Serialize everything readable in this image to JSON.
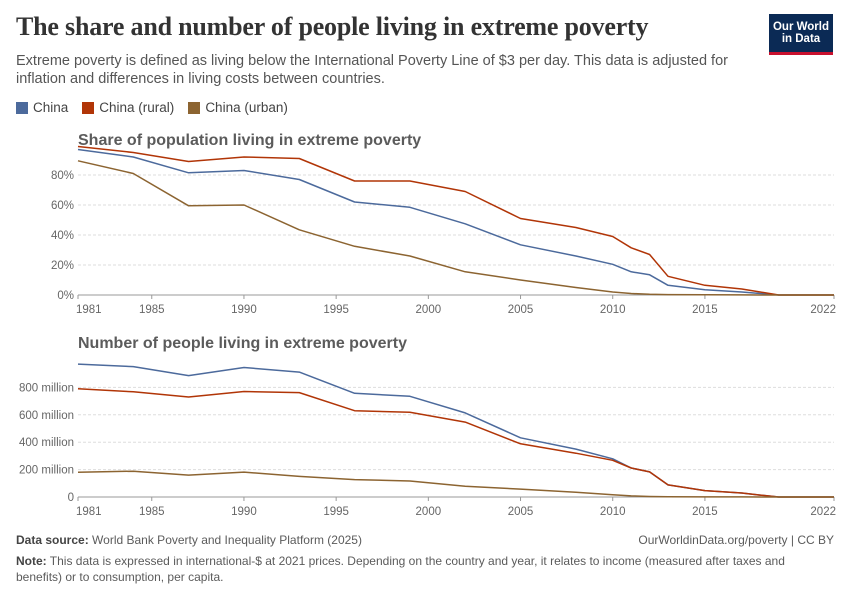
{
  "header": {
    "title": "The share and number of people living in extreme poverty",
    "subtitle": "Extreme poverty is defined as living below the International Poverty Line of $3 per day. This data is adjusted for inflation and differences in living costs between countries.",
    "logo_line1": "Our World",
    "logo_line2": "in Data"
  },
  "legend": [
    {
      "name": "China",
      "color": "#4c6a9c"
    },
    {
      "name": "China (rural)",
      "color": "#b13507"
    },
    {
      "name": "China (urban)",
      "color": "#8c6431"
    }
  ],
  "footer": {
    "source_label": "Data source:",
    "source_text": "World Bank Poverty and Inequality Platform (2025)",
    "url": "OurWorldinData.org/poverty | CC BY",
    "note_label": "Note:",
    "note_text": "This data is expressed in international-$ at 2021 prices. Depending on the country and year, it relates to income (measured after taxes and benefits) or to consumption, per capita."
  },
  "chart_data": [
    {
      "type": "line",
      "title": "Share of population living in extreme poverty",
      "xlim": [
        1981,
        2022
      ],
      "ylim": [
        0,
        90
      ],
      "x_ticks": [
        "1981",
        "1985",
        "1990",
        "1995",
        "2000",
        "2005",
        "2010",
        "2015",
        "2022"
      ],
      "y_ticks": [
        {
          "value": 0,
          "label": "0%"
        },
        {
          "value": 20,
          "label": "20%"
        },
        {
          "value": 40,
          "label": "40%"
        },
        {
          "value": 60,
          "label": "60%"
        },
        {
          "value": 80,
          "label": "80%"
        }
      ],
      "grid": true,
      "series": [
        {
          "name": "China",
          "color": "#4c6a9c",
          "x": [
            1981,
            1984,
            1987,
            1990,
            1993,
            1996,
            1999,
            2002,
            2005,
            2008,
            2010,
            2011,
            2012,
            2013,
            2015,
            2017,
            2018,
            2019,
            2022
          ],
          "y": [
            97,
            92,
            81.5,
            83,
            77,
            62,
            58.5,
            47.5,
            33.5,
            26,
            20.5,
            15.5,
            13.5,
            6.5,
            3.5,
            2,
            1,
            0,
            0
          ]
        },
        {
          "name": "China (rural)",
          "color": "#b13507",
          "x": [
            1981,
            1984,
            1987,
            1990,
            1993,
            1996,
            1999,
            2002,
            2005,
            2008,
            2010,
            2011,
            2012,
            2013,
            2015,
            2017,
            2018,
            2019,
            2022
          ],
          "y": [
            99,
            95,
            89,
            92,
            91,
            76,
            76,
            69,
            51,
            45,
            39,
            31.5,
            27,
            12.5,
            6.5,
            4,
            2,
            0,
            0
          ]
        },
        {
          "name": "China (urban)",
          "color": "#8c6431",
          "x": [
            1981,
            1984,
            1987,
            1990,
            1993,
            1996,
            1999,
            2002,
            2005,
            2008,
            2010,
            2011,
            2012,
            2013,
            2015,
            2017,
            2018,
            2019,
            2022
          ],
          "y": [
            89.5,
            81,
            59.5,
            60,
            43.5,
            32.5,
            26,
            15.5,
            10,
            5,
            2,
            1,
            0.5,
            0.3,
            0.2,
            0.1,
            0,
            0,
            0
          ]
        }
      ]
    },
    {
      "type": "line",
      "title": "Number of people living in extreme poverty",
      "xlim": [
        1981,
        2022
      ],
      "ylim": [
        0,
        1000
      ],
      "x_ticks": [
        "1981",
        "1985",
        "1990",
        "1995",
        "2000",
        "2005",
        "2010",
        "2015",
        "2022"
      ],
      "y_ticks": [
        {
          "value": 0,
          "label": "0"
        },
        {
          "value": 200,
          "label": "200 million"
        },
        {
          "value": 400,
          "label": "400 million"
        },
        {
          "value": 600,
          "label": "600 million"
        },
        {
          "value": 800,
          "label": "800 million"
        }
      ],
      "grid": true,
      "series": [
        {
          "name": "China",
          "color": "#4c6a9c",
          "x": [
            1981,
            1984,
            1987,
            1990,
            1993,
            1996,
            1999,
            2002,
            2005,
            2008,
            2010,
            2011,
            2012,
            2013,
            2015,
            2017,
            2018,
            2019,
            2022
          ],
          "y": [
            970,
            952,
            886,
            945,
            912,
            757,
            735,
            614,
            432,
            350,
            279,
            212,
            183,
            88,
            47,
            29,
            14,
            0,
            0
          ]
        },
        {
          "name": "China (rural)",
          "color": "#b13507",
          "x": [
            1981,
            1984,
            1987,
            1990,
            1993,
            1996,
            1999,
            2002,
            2005,
            2008,
            2010,
            2011,
            2012,
            2013,
            2015,
            2017,
            2018,
            2019,
            2022
          ],
          "y": [
            790,
            768,
            730,
            770,
            762,
            630,
            618,
            547,
            388,
            320,
            268,
            212,
            183,
            88,
            47,
            29,
            14,
            0,
            0
          ]
        },
        {
          "name": "China (urban)",
          "color": "#8c6431",
          "x": [
            1981,
            1984,
            1987,
            1990,
            1993,
            1996,
            1999,
            2002,
            2005,
            2008,
            2010,
            2011,
            2012,
            2013,
            2015,
            2017,
            2018,
            2019,
            2022
          ],
          "y": [
            180,
            188,
            160,
            182,
            150,
            127,
            117,
            78,
            58,
            34,
            16,
            8,
            4,
            2,
            1,
            0.5,
            0,
            0,
            0
          ]
        }
      ]
    }
  ]
}
